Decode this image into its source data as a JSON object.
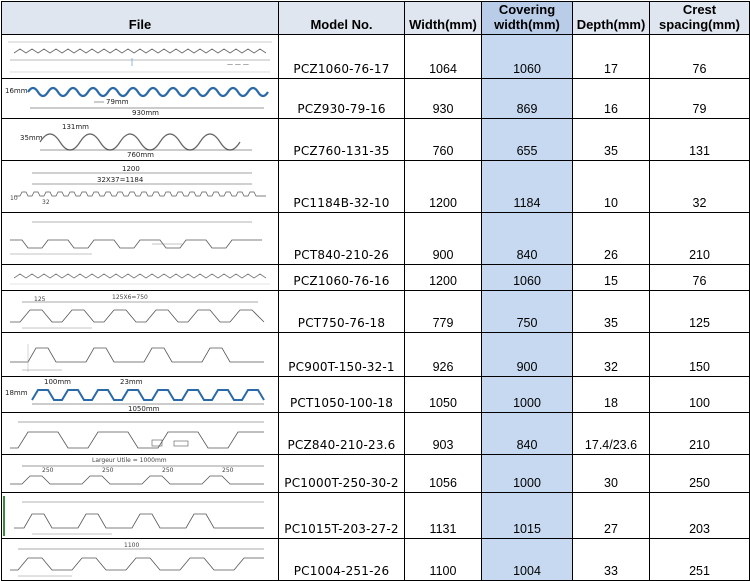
{
  "headers": {
    "file": "File",
    "model": "Model No.",
    "width": "Width(mm)",
    "covering_1": "Covering",
    "covering_2": "width(mm)",
    "depth": "Depth(mm)",
    "crest_1": "Crest",
    "crest_2": "spacing(mm)"
  },
  "rows": [
    {
      "model": "PCZ1060-76-17",
      "width": "1064",
      "covering": "1060",
      "depth": "17",
      "crest": "76",
      "drawing": "wave-profile-icon",
      "labels": []
    },
    {
      "model": "PCZ930-79-16",
      "width": "930",
      "covering": "869",
      "depth": "16",
      "crest": "79",
      "drawing": "wave-profile-icon",
      "labels": [
        "16mm",
        "79mm",
        "930mm"
      ]
    },
    {
      "model": "PCZ760-131-35",
      "width": "760",
      "covering": "655",
      "depth": "35",
      "crest": "131",
      "drawing": "wave-profile-icon",
      "labels": [
        "35mm",
        "131mm",
        "760mm"
      ]
    },
    {
      "model": "PC1184B-32-10",
      "width": "1200",
      "covering": "1184",
      "depth": "10",
      "crest": "32",
      "drawing": "trapezoid-profile-icon",
      "labels": [
        "1200",
        "32X37=1184",
        "10",
        "32"
      ]
    },
    {
      "model": "PCT840-210-26",
      "width": "900",
      "covering": "840",
      "depth": "26",
      "crest": "210",
      "drawing": "trapezoid-profile-icon",
      "labels": []
    },
    {
      "model": "PCZ1060-76-16",
      "width": "1200",
      "covering": "1060",
      "depth": "15",
      "crest": "76",
      "drawing": "wave-profile-icon",
      "labels": []
    },
    {
      "model": "PCT750-76-18",
      "width": "779",
      "covering": "750",
      "depth": "35",
      "crest": "125",
      "drawing": "trapezoid-profile-icon",
      "labels": [
        "125",
        "125X6=750"
      ]
    },
    {
      "model": "PC900T-150-32-1",
      "width": "926",
      "covering": "900",
      "depth": "32",
      "crest": "150",
      "drawing": "trapezoid-profile-icon",
      "labels": []
    },
    {
      "model": "PCT1050-100-18",
      "width": "1050",
      "covering": "1000",
      "depth": "18",
      "crest": "100",
      "drawing": "trapezoid-profile-icon",
      "labels": [
        "18mm",
        "100mm",
        "23mm",
        "1050mm"
      ]
    },
    {
      "model": "PCZ840-210-23.6",
      "width": "903",
      "covering": "840",
      "depth": "17.4/23.6",
      "crest": "210",
      "drawing": "trapezoid-profile-icon",
      "labels": []
    },
    {
      "model": "PC1000T-250-30-2",
      "width": "1056",
      "covering": "1000",
      "depth": "30",
      "crest": "250",
      "drawing": "trapezoid-profile-icon",
      "labels": [
        "Largeur Utile = 1000mm",
        "250",
        "250",
        "250",
        "250"
      ]
    },
    {
      "model": "PC1015T-203-27-2",
      "width": "1131",
      "covering": "1015",
      "depth": "27",
      "crest": "203",
      "drawing": "trapezoid-profile-icon",
      "labels": []
    },
    {
      "model": "PC1004-251-26",
      "width": "1100",
      "covering": "1004",
      "depth": "33",
      "crest": "251",
      "drawing": "trapezoid-profile-icon",
      "labels": [
        "1100"
      ]
    }
  ]
}
